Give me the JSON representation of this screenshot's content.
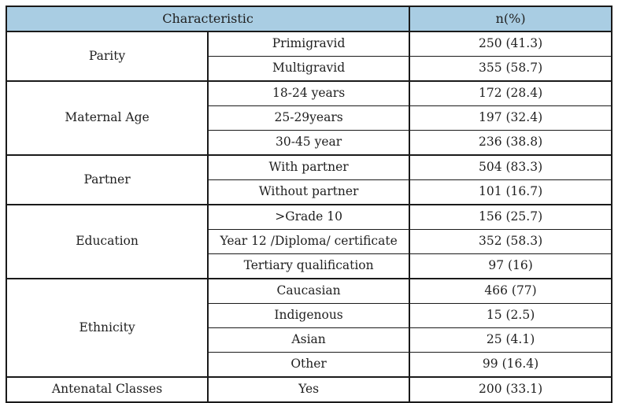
{
  "table": {
    "header": {
      "characteristic": "Characteristic",
      "n_percent": "n(%)"
    },
    "groups": [
      {
        "label": "Parity",
        "rows": [
          {
            "category": "Primigravid",
            "value": "250 (41.3)"
          },
          {
            "category": "Multigravid",
            "value": "355 (58.7)"
          }
        ]
      },
      {
        "label": "Maternal Age",
        "rows": [
          {
            "category": "18-24 years",
            "value": "172 (28.4)"
          },
          {
            "category": "25-29years",
            "value": "197 (32.4)"
          },
          {
            "category": "30-45 year",
            "value": "236 (38.8)"
          }
        ]
      },
      {
        "label": "Partner",
        "rows": [
          {
            "category": "With partner",
            "value": "504 (83.3)"
          },
          {
            "category": "Without partner",
            "value": "101 (16.7)"
          }
        ]
      },
      {
        "label": "Education",
        "rows": [
          {
            "category": ">Grade 10",
            "value": "156 (25.7)"
          },
          {
            "category": "Year 12 /Diploma/ certificate",
            "value": "352 (58.3)"
          },
          {
            "category": "Tertiary qualification",
            "value": "97 (16)"
          }
        ]
      },
      {
        "label": "Ethnicity",
        "rows": [
          {
            "category": "Caucasian",
            "value": "466 (77)"
          },
          {
            "category": "Indigenous",
            "value": "15 (2.5)"
          },
          {
            "category": "Asian",
            "value": "25 (4.1)"
          },
          {
            "category": "Other",
            "value": "99 (16.4)"
          }
        ]
      },
      {
        "label": "Antenatal Classes",
        "rows": [
          {
            "category": "Yes",
            "value": "200 (33.1)"
          }
        ]
      }
    ]
  },
  "chart_data": {
    "type": "table",
    "title": "",
    "columns": [
      "Characteristic group",
      "Characteristic",
      "n(%)"
    ],
    "rows": [
      [
        "Parity",
        "Primigravid",
        "250 (41.3)"
      ],
      [
        "Parity",
        "Multigravid",
        "355 (58.7)"
      ],
      [
        "Maternal Age",
        "18-24 years",
        "172 (28.4)"
      ],
      [
        "Maternal Age",
        "25-29years",
        "197 (32.4)"
      ],
      [
        "Maternal Age",
        "30-45 year",
        "236 (38.8)"
      ],
      [
        "Partner",
        "With partner",
        "504 (83.3)"
      ],
      [
        "Partner",
        "Without partner",
        "101 (16.7)"
      ],
      [
        "Education",
        ">Grade 10",
        "156 (25.7)"
      ],
      [
        "Education",
        "Year 12 /Diploma/ certificate",
        "352 (58.3)"
      ],
      [
        "Education",
        "Tertiary qualification",
        "97 (16)"
      ],
      [
        "Ethnicity",
        "Caucasian",
        "466 (77)"
      ],
      [
        "Ethnicity",
        "Indigenous",
        "15 (2.5)"
      ],
      [
        "Ethnicity",
        "Asian",
        "25 (4.1)"
      ],
      [
        "Ethnicity",
        "Other",
        "99 (16.4)"
      ],
      [
        "Antenatal Classes",
        "Yes",
        "200 (33.1)"
      ]
    ]
  },
  "colors": {
    "header_bg": "#a9cde3",
    "border": "#1a1a1a",
    "text": "#1f1f1f"
  }
}
